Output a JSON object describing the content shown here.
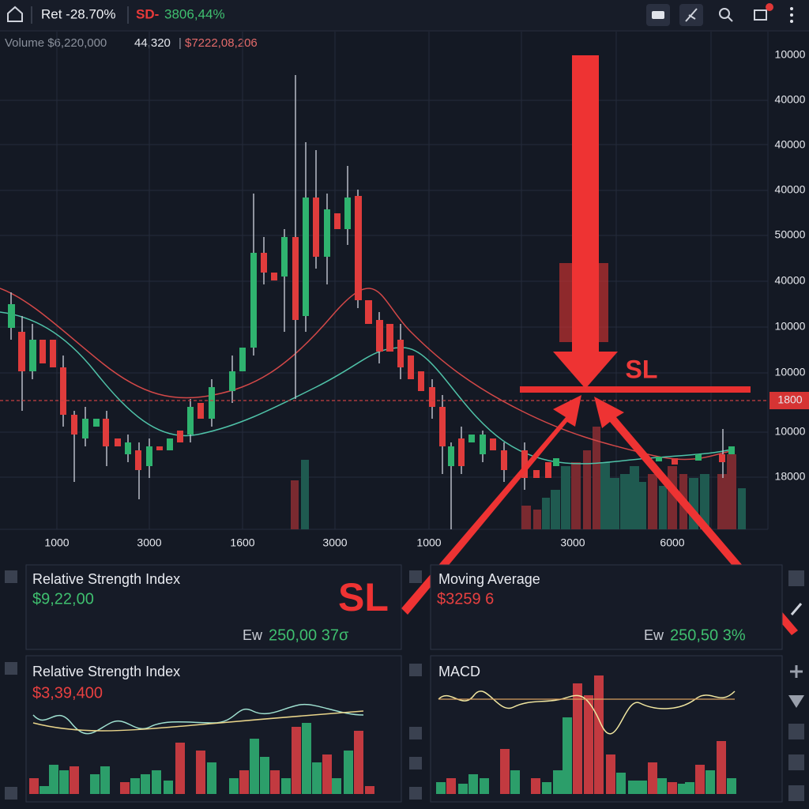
{
  "header": {
    "ret": "Ret -28.70%",
    "sd_label": "SD-",
    "sd_value": "3806,44%"
  },
  "volume_bar": {
    "volume": "Volume $6,220,000",
    "count": "44,320",
    "price": "$7222,08,206"
  },
  "price_axis": [
    "10000",
    "40000",
    "40000",
    "40000",
    "50000",
    "40000",
    "10000",
    "10000",
    "1800",
    "10000",
    "18000"
  ],
  "time_axis": [
    "1000",
    "3000",
    "1600",
    "3000",
    "1000",
    "3000",
    "6000"
  ],
  "annotations": {
    "sl_main": "SL",
    "sl_panel": "SL"
  },
  "panels": [
    {
      "title": "Relative Strength Index",
      "value": "$9,22,00",
      "footer_label": "Ew",
      "footer_value": "250,00 37σ"
    },
    {
      "title": "Moving Average",
      "value": "$3259  6",
      "footer_label": "Ew",
      "footer_value": "250,50 3%"
    },
    {
      "title": "Relative Strength Index",
      "value": "$3,39,400"
    },
    {
      "title": "MACD"
    }
  ]
}
